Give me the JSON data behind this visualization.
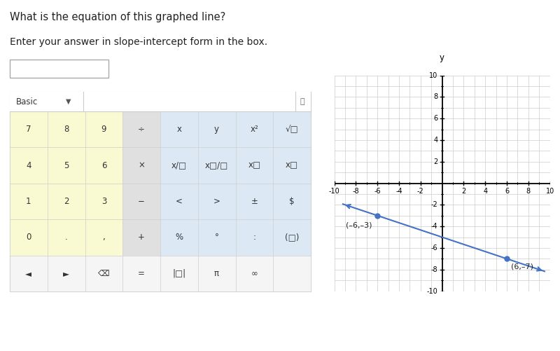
{
  "title": "What is the equation of this graphed line?",
  "subtitle": "Enter your answer in slope-intercept form in the box.",
  "graph": {
    "xlim": [
      -10,
      10
    ],
    "ylim": [
      -10,
      10
    ],
    "line_color": "#4472c4",
    "point1": [
      -6,
      -3
    ],
    "point2": [
      6,
      -7
    ],
    "label1": "(–6,–3)",
    "label2": "(6,–7)",
    "grid_color": "#cccccc",
    "grid_major_color": "#bbbbbb",
    "bg_color": "#ffffff",
    "axis_color": "#000000"
  },
  "figure_bg": "#ffffff",
  "text_color": "#333333",
  "calc": {
    "yellow_bg": "#fafad2",
    "gray_bg": "#e0e0e0",
    "blue_bg": "#dce9f5",
    "white_bg": "#f5f5f5",
    "border": "#cccccc",
    "btn_texts": [
      [
        "7",
        "8",
        "9",
        "÷",
        "x",
        "y",
        "x²",
        "√□"
      ],
      [
        "4",
        "5",
        "6",
        "×",
        "x/□",
        "x□/□",
        "x□",
        "x□"
      ],
      [
        "1",
        "2",
        "3",
        "−",
        "<",
        ">",
        "±",
        "$"
      ],
      [
        "0",
        ".",
        ",",
        "+",
        "%",
        "°",
        ":",
        "(□)"
      ],
      [
        "◄",
        "►",
        "⌫",
        "=",
        "|□|",
        "π",
        "∞",
        ""
      ]
    ]
  }
}
